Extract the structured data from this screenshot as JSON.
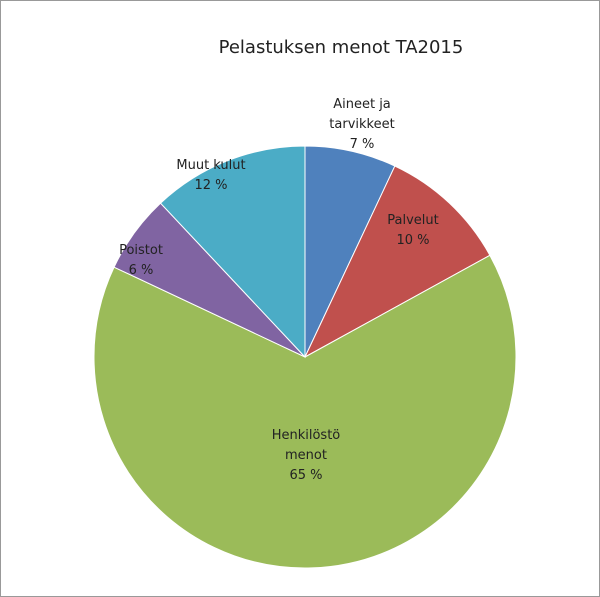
{
  "chart_data": {
    "type": "pie",
    "title": "Pelastuksen menot TA2015",
    "categories": [
      "Aineet ja tarvikkeet",
      "Palvelut",
      "Henkilöstö menot",
      "Poistot",
      "Muut kulut"
    ],
    "values": [
      7,
      10,
      65,
      6,
      12
    ],
    "value_labels": [
      "7 %",
      "10 %",
      "65 %",
      "6 %",
      "12 %"
    ],
    "colors": [
      "#4f81bd",
      "#c0504d",
      "#9bbb59",
      "#8064a2",
      "#4bacc6"
    ]
  }
}
